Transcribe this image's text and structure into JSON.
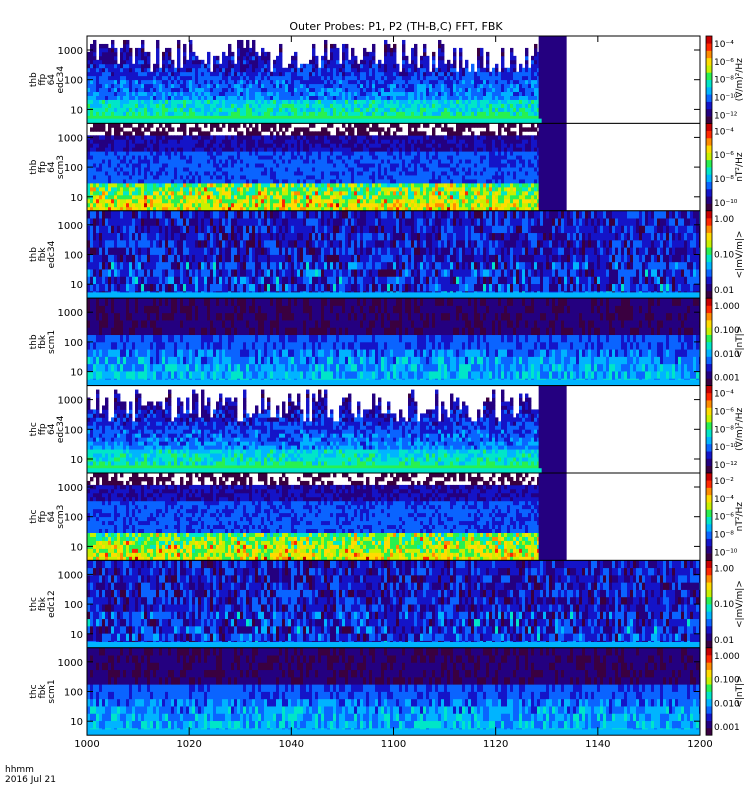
{
  "title": "Outer Probes: P1, P2 (TH-B,C) FFT, FBK",
  "footer": {
    "time_label": "hhmm",
    "date_label": "2016 Jul 21"
  },
  "colors": {
    "rainbow": [
      "#3a0040",
      "#240080",
      "#1414c8",
      "#0a64ff",
      "#00b4ff",
      "#00e6c8",
      "#28f050",
      "#c8f000",
      "#ffdc00",
      "#ff8c00",
      "#ff2800",
      "#c80000"
    ]
  },
  "chart_data": [
    {
      "type": "heatmap",
      "title": "Outer Probes: P1, P2 (TH-B,C) FFT, FBK",
      "xlabel": "hhmm",
      "x_ticks": [
        "1000",
        "1020",
        "1040",
        "1100",
        "1120",
        "1140",
        "1200"
      ],
      "panels": [
        {
          "id": "thb-ffp-edc34",
          "ylabel": [
            "thb",
            "ffp",
            "64",
            "edc34"
          ],
          "yticks": [
            "10",
            "100",
            "1000"
          ],
          "cbar_label": "(V/m)²/Hz",
          "cbar_ticks": [
            "10⁻⁴",
            "10⁻⁶",
            "10⁻⁸",
            "10⁻¹⁰",
            "10⁻¹²"
          ],
          "data_end": "1129",
          "style": "ffp-e"
        },
        {
          "id": "thb-ffp-scm3",
          "ylabel": [
            "thb",
            "ffp",
            "64",
            "scm3"
          ],
          "yticks": [
            "10",
            "100",
            "1000"
          ],
          "cbar_label": "nT²/Hz",
          "cbar_ticks": [
            "10⁻⁴",
            "10⁻⁶",
            "10⁻⁸",
            "10⁻¹⁰"
          ],
          "data_end": "1129",
          "style": "ffp-b"
        },
        {
          "id": "thb-fbk-edc34",
          "ylabel": [
            "thb",
            "fbk",
            "edc34"
          ],
          "yticks": [
            "10",
            "100",
            "1000"
          ],
          "cbar_label": "<|mV/m|>",
          "cbar_ticks": [
            "1.00",
            "0.10",
            "0.01"
          ],
          "data_end": "1200",
          "style": "fbk-e"
        },
        {
          "id": "thb-fbk-scm1",
          "ylabel": [
            "thb",
            "fbk",
            "scm1"
          ],
          "yticks": [
            "10",
            "100",
            "1000"
          ],
          "cbar_label": "<|nT|>",
          "cbar_ticks": [
            "1.000",
            "0.100",
            "0.010",
            "0.001"
          ],
          "data_end": "1200",
          "style": "fbk-b"
        },
        {
          "id": "thc-ffp-edc34",
          "ylabel": [
            "thc",
            "ffp",
            "64",
            "edc34"
          ],
          "yticks": [
            "10",
            "100",
            "1000"
          ],
          "cbar_label": "(V/m)²/Hz",
          "cbar_ticks": [
            "10⁻⁴",
            "10⁻⁶",
            "10⁻⁸",
            "10⁻¹⁰",
            "10⁻¹²"
          ],
          "data_end": "1129",
          "style": "ffp-e"
        },
        {
          "id": "thc-ffp-scm3",
          "ylabel": [
            "thc",
            "ffp",
            "64",
            "scm3"
          ],
          "yticks": [
            "10",
            "100",
            "1000"
          ],
          "cbar_label": "nT²/Hz",
          "cbar_ticks": [
            "10⁻²",
            "10⁻⁴",
            "10⁻⁶",
            "10⁻⁸",
            "10⁻¹⁰"
          ],
          "data_end": "1129",
          "style": "ffp-b"
        },
        {
          "id": "thc-fbk-edc12",
          "ylabel": [
            "thc",
            "fbk",
            "edc12"
          ],
          "yticks": [
            "10",
            "100",
            "1000"
          ],
          "cbar_label": "<|mV/m|>",
          "cbar_ticks": [
            "1.00",
            "0.10",
            "0.01"
          ],
          "data_end": "1200",
          "style": "fbk-e"
        },
        {
          "id": "thc-fbk-scm1",
          "ylabel": [
            "thc",
            "fbk",
            "scm1"
          ],
          "yticks": [
            "10",
            "100",
            "1000"
          ],
          "cbar_label": "<|nT|>",
          "cbar_ticks": [
            "1.000",
            "0.100",
            "0.010",
            "0.001"
          ],
          "data_end": "1200",
          "style": "fbk-b"
        }
      ]
    }
  ]
}
